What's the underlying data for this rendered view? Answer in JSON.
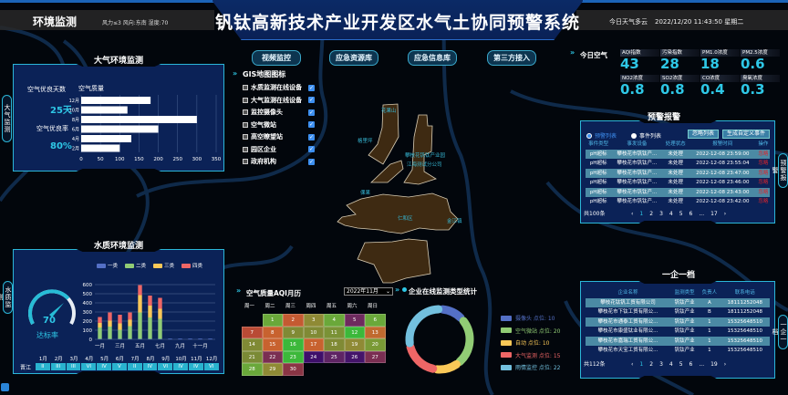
{
  "header": {
    "section_title": "环境监测",
    "weather_info": "风力≤3  风向:东南  湿度:70",
    "title": "钒钛高新技术产业开发区水气土协同预警系统",
    "weather_today": "今日天气多云",
    "datetime": "2022/12/20 11:43:50 星期二"
  },
  "nav": [
    "视频监控",
    "应急资源库",
    "应急信息库",
    "第三方接入"
  ],
  "air_panel": {
    "title": "大气环境监测",
    "side_tab": "大气监测",
    "good_days_label": "空气优良天数",
    "good_days_value": "25天",
    "good_rate_label": "空气优良率",
    "good_rate_value": "80%"
  },
  "water_panel": {
    "title": "水质环境监测",
    "side_tab": "水质监测",
    "gauge_value": "70",
    "gauge_fraction": 0.7,
    "gauge_label": "达标率",
    "river_name": "晋江",
    "months": [
      "1月",
      "2月",
      "3月",
      "4月",
      "5月",
      "6月",
      "7月",
      "8月",
      "9月",
      "10月",
      "11月",
      "12月"
    ],
    "classes": [
      "II",
      "III",
      "III",
      "VI",
      "IV",
      "V",
      "II",
      "IV",
      "VI",
      "IV",
      "IV",
      "VI"
    ]
  },
  "gis": {
    "title": "GIS地图图标",
    "items": [
      "水质监测在线设备",
      "大气监测在线设备",
      "监控摄像头",
      "空气微站",
      "高空瞭望站",
      "园区企业",
      "政府机构"
    ]
  },
  "today_air": {
    "title": "今日空气",
    "metrics": [
      {
        "label": "AQI指数",
        "value": "43"
      },
      {
        "label": "污染指数",
        "value": "28"
      },
      {
        "label": "PM1.0浓度",
        "value": "18"
      },
      {
        "label": "PM2.5浓度",
        "value": "0.6"
      },
      {
        "label": "NO2浓度",
        "value": "0.8"
      },
      {
        "label": "SO2浓度",
        "value": "0.8"
      },
      {
        "label": "CO浓度",
        "value": "0.4"
      },
      {
        "label": "臭氧浓度",
        "value": "0.3"
      }
    ]
  },
  "alerts": {
    "title": "预警报警",
    "side_tab": "预警报警",
    "radio_options": [
      "预警列表",
      "事件列表"
    ],
    "buttons": [
      "忽略列表",
      "生成自定义事件"
    ],
    "columns": [
      "事件类型",
      "事发设备",
      "处理状态",
      "报警时间",
      "操作"
    ],
    "rows": [
      [
        "pH超标",
        "攀枝花市钒钛产...",
        "未处理",
        "2022-12-08 23:59:00",
        "忽略"
      ],
      [
        "pH超标",
        "攀枝花市钒钛产...",
        "未处理",
        "2022-12-08 23:55:04",
        "忽略"
      ],
      [
        "pH超标",
        "攀枝花市钒钛产...",
        "未处理",
        "2022-12-08 23:47:00",
        "忽略"
      ],
      [
        "pH超标",
        "攀枝花市钒钛产...",
        "未处理",
        "2022-12-08 23:46:00",
        "忽略"
      ],
      [
        "pH超标",
        "攀枝花市钒钛产...",
        "未处理",
        "2022-12-08 23:43:00",
        "忽略"
      ],
      [
        "pH超标",
        "攀枝花市钒钛产...",
        "未处理",
        "2022-12-08 23:42:00",
        "忽略"
      ]
    ],
    "total": "共100条",
    "pages": [
      "1",
      "2",
      "3",
      "4",
      "5",
      "6",
      "...",
      "17"
    ]
  },
  "enterprise": {
    "title": "一企一档",
    "side_tab": "一企一档",
    "columns": [
      "企业名称",
      "监测类型",
      "负责人",
      "联系电话"
    ],
    "rows": [
      [
        "攀枝花钛钒工贸有限公司",
        "钒钛产业",
        "A",
        "18111252048"
      ],
      [
        "攀枝花市下钛工贸有限公...",
        "钒钛产业",
        "B",
        "18111252048"
      ],
      [
        "攀枝花市通泰工贸有限公...",
        "钒钛产业",
        "1",
        "15325648510"
      ],
      [
        "攀枝花市康盛钛业有限公...",
        "钒钛产业",
        "1",
        "15325648510"
      ],
      [
        "攀枝花市嘉瑞工贸有限公...",
        "钒钛产业",
        "1",
        "15325648510"
      ],
      [
        "攀枝花市天宝工贸有限公...",
        "钒钛产业",
        "1",
        "15325648510"
      ]
    ],
    "total": "共112条",
    "pages": [
      "1",
      "2",
      "3",
      "4",
      "5",
      "6",
      "...",
      "19"
    ]
  },
  "calendar": {
    "title": "空气质量AQI月历",
    "month_select": "2022年11月",
    "weekdays": [
      "周一",
      "周二",
      "周三",
      "周四",
      "周五",
      "周六",
      "周日"
    ],
    "first_weekday_index": 1,
    "days": [
      {
        "d": "1",
        "c": "#6aa83a"
      },
      {
        "d": "2",
        "c": "#c45a32"
      },
      {
        "d": "3",
        "c": "#8f8a35"
      },
      {
        "d": "4",
        "c": "#6aa83a"
      },
      {
        "d": "5",
        "c": "#6e2a5e"
      },
      {
        "d": "6",
        "c": "#6aa83a"
      },
      {
        "d": "7",
        "c": "#b94a35"
      },
      {
        "d": "8",
        "c": "#c8622f"
      },
      {
        "d": "9",
        "c": "#808a35"
      },
      {
        "d": "10",
        "c": "#808a35"
      },
      {
        "d": "11",
        "c": "#7a9236"
      },
      {
        "d": "12",
        "c": "#3cb83a"
      },
      {
        "d": "13",
        "c": "#c06a2f"
      },
      {
        "d": "14",
        "c": "#808a35"
      },
      {
        "d": "15",
        "c": "#c8622f"
      },
      {
        "d": "16",
        "c": "#3cb83a"
      },
      {
        "d": "17",
        "c": "#c8622f"
      },
      {
        "d": "18",
        "c": "#808a35"
      },
      {
        "d": "19",
        "c": "#8f8a35"
      },
      {
        "d": "20",
        "c": "#7a9a36"
      },
      {
        "d": "21",
        "c": "#7a8a35"
      },
      {
        "d": "22",
        "c": "#7a2e52"
      },
      {
        "d": "23",
        "c": "#3cb83a"
      },
      {
        "d": "24",
        "c": "#3e0f6a"
      },
      {
        "d": "25",
        "c": "#5e2464"
      },
      {
        "d": "26",
        "c": "#44146a"
      },
      {
        "d": "27",
        "c": "#7a2e52"
      },
      {
        "d": "28",
        "c": "#6aa83a"
      },
      {
        "d": "29",
        "c": "#8f8a35"
      },
      {
        "d": "30",
        "c": "#8a3545"
      }
    ]
  },
  "map_labels": [
    "攀枝花钒钛产业园",
    "江海测试分公司",
    "花果山",
    "格里坪",
    "倮果",
    "仁和区",
    "金江镇"
  ],
  "bottom_icon": "app-icon",
  "chart_data": [
    {
      "type": "bar",
      "orientation": "horizontal",
      "title": "空气质量",
      "categories": [
        "12月",
        "10月",
        "8月",
        "6月",
        "4月",
        "2月"
      ],
      "values": [
        180,
        120,
        300,
        200,
        130,
        100
      ],
      "xlim": [
        0,
        350
      ],
      "xticks": [
        0,
        50,
        100,
        150,
        200,
        250,
        300,
        350
      ],
      "grid": true,
      "color": "#ffffff"
    },
    {
      "type": "bar",
      "stacked": true,
      "categories": [
        "1月",
        "2月",
        "3月",
        "4月",
        "5月",
        "6月",
        "7月",
        "8月",
        "9月",
        "10月",
        "11月",
        "12月"
      ],
      "xtick_labels": [
        "一月",
        "",
        "三月",
        "",
        "五月",
        "",
        "七月",
        "",
        "九月",
        "",
        "十一月",
        ""
      ],
      "ylim": [
        0,
        600
      ],
      "yticks": [
        0,
        100,
        200,
        300,
        400,
        500,
        600
      ],
      "legend": "top",
      "grid": true,
      "series": [
        {
          "name": "一类",
          "color": "#5470c6",
          "values": [
            5,
            5,
            5,
            5,
            5,
            5,
            5,
            8,
            8,
            8,
            8,
            8
          ]
        },
        {
          "name": "二类",
          "color": "#91cc75",
          "values": [
            125,
            135,
            100,
            140,
            290,
            235,
            220,
            0,
            0,
            0,
            0,
            0
          ]
        },
        {
          "name": "三类",
          "color": "#fac858",
          "values": [
            50,
            65,
            70,
            70,
            190,
            130,
            110,
            0,
            0,
            0,
            0,
            0
          ]
        },
        {
          "name": "四类",
          "color": "#ee6666",
          "values": [
            65,
            90,
            95,
            80,
            110,
            110,
            120,
            0,
            0,
            0,
            0,
            0
          ]
        }
      ]
    },
    {
      "type": "pie",
      "donut": true,
      "title": "企业在线监测类型统计",
      "legend": "right",
      "slices": [
        {
          "name": "摄像头",
          "label": "摄像头 点位: 10",
          "value": 10,
          "color": "#5470c6"
        },
        {
          "name": "空气微站",
          "label": "空气微站 点位: 20",
          "value": 20,
          "color": "#91cc75"
        },
        {
          "name": "自动",
          "label": "自动 点位: 10",
          "value": 10,
          "color": "#fac858"
        },
        {
          "name": "大气监测",
          "label": "大气监测 点位: 15",
          "value": 15,
          "color": "#ee6666"
        },
        {
          "name": "雨情监控",
          "label": "雨情监控 点位: 22",
          "value": 22,
          "color": "#73c0de"
        }
      ]
    }
  ]
}
